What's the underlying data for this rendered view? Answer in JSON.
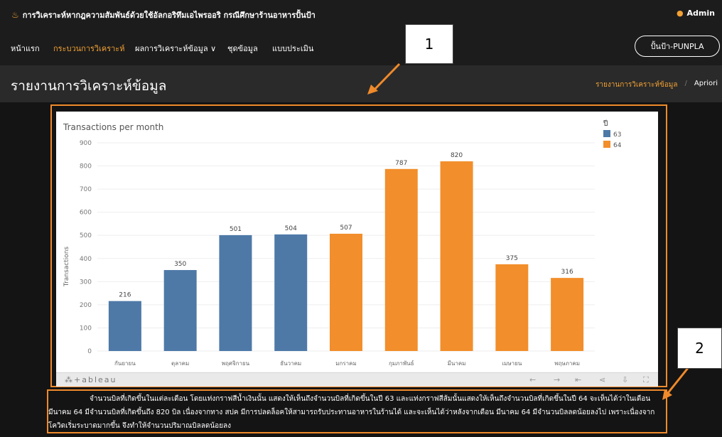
{
  "topbar": {
    "title": "การวิเคราะห์หากฎความสัมพันธ์ด้วยใช้อัลกอริทึมเอไพรออริ กรณีศึกษาร้านอาหารปั้นป้า",
    "user": "Admin"
  },
  "nav": {
    "items": [
      "หน้าแรก",
      "กระบวนการวิเคราะห์",
      "ผลการวิเคราะห์ข้อมูล ∨",
      "ชุดข้อมูล",
      "แบบประเมิน"
    ],
    "shop_button": "ปั้นป้า-PUNPLA",
    "active_index": 1
  },
  "header": {
    "title": "รายงานการวิเคราะห์ข้อมูล",
    "breadcrumb_current": "รายงานการวิเคราะห์ข้อมูล",
    "breadcrumb_next": "Apriori"
  },
  "callouts": {
    "one": "1",
    "two": "2"
  },
  "tableau": {
    "logo": "+ableau"
  },
  "chart_data": {
    "type": "bar",
    "title": "Transactions per month",
    "ylabel": "Transactions",
    "xlabel": "",
    "ylim": [
      0,
      900
    ],
    "yticks": [
      0,
      100,
      200,
      300,
      400,
      500,
      600,
      700,
      800,
      900
    ],
    "legend_title": "ปี",
    "legend_position": "top-right",
    "grid": true,
    "series_colors": {
      "63": "#4e79a7",
      "64": "#f28e2b"
    },
    "legend": [
      "63",
      "64"
    ],
    "categories": [
      "กันยายน",
      "ตุลาคม",
      "พฤศจิกายน",
      "ธันวาคม",
      "มกราคม",
      "กุมภาพันธ์",
      "มีนาคม",
      "เมษายน",
      "พฤษภาคม"
    ],
    "values": [
      216,
      350,
      501,
      504,
      507,
      787,
      820,
      375,
      316
    ],
    "years": [
      "63",
      "63",
      "63",
      "63",
      "64",
      "64",
      "64",
      "64",
      "64"
    ]
  },
  "description": "จำนวนบิลที่เกิดขึ้นในแต่ละเดือน โดยแท่งกราฟสีน้ำเงินนั้น แสดงให้เห็นถึงจำนวนบิลที่เกิดขึ้นในปี 63 และแท่งกราฟสีส้มนั้นแสดงให้เห็นถึงจำนวนบิลที่เกิดขึ้นในปี 64 จะเห็นได้ว่าในเดือน มีนาคม 64 มีจำนวนบิลที่เกิดขึ้นถึง 820 บิล เนื่องจากทาง สปค มีการปลดล็อคให้สามารถรับประทานอาหารในร้านได้ และจะเห็นได้ว่าหลังจากเดือน มีนาคม 64 มีจำนวนบิลลดน้อยลงไป เพราะเนื่องจากโควิดเริ่มระบาดมากขึ้น จึงทำให้จำนวนปริมาณบิลลดน้อยลง"
}
